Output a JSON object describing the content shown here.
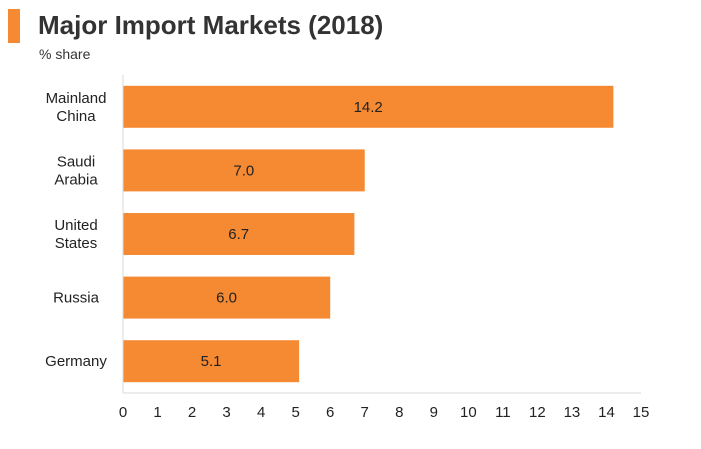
{
  "header": {
    "title": "Major Import Markets (2018)",
    "subtitle": "% share"
  },
  "colors": {
    "accent": "#f58a33",
    "bar": "#f58a33",
    "axis": "#d9d9d9",
    "text": "#222222"
  },
  "chart_data": {
    "type": "bar",
    "orientation": "horizontal",
    "title": "Major Import Markets (2018)",
    "subtitle": "% share",
    "categories": [
      [
        "Mainland",
        "China"
      ],
      [
        "Saudi",
        "Arabia"
      ],
      [
        "United",
        "States"
      ],
      [
        "Russia"
      ],
      [
        "Germany"
      ]
    ],
    "values": [
      14.2,
      7.0,
      6.7,
      6.0,
      5.1
    ],
    "value_labels": [
      "14.2",
      "7.0",
      "6.7",
      "6.0",
      "5.1"
    ],
    "xlim": [
      0,
      15
    ],
    "xticks": [
      "0",
      "1",
      "2",
      "3",
      "4",
      "5",
      "6",
      "7",
      "8",
      "9",
      "10",
      "11",
      "12",
      "13",
      "14",
      "15"
    ],
    "grid": false,
    "legend": "none"
  }
}
